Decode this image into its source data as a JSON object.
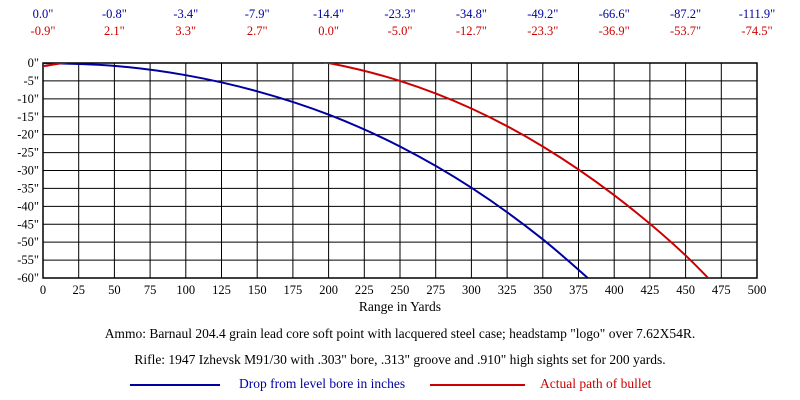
{
  "chart_data": {
    "type": "line",
    "xlabel": "Range in Yards",
    "xlim": [
      0,
      500
    ],
    "ylim": [
      -60,
      0
    ],
    "x_ticks": [
      "0",
      "25",
      "50",
      "75",
      "100",
      "125",
      "150",
      "175",
      "200",
      "225",
      "250",
      "275",
      "300",
      "325",
      "350",
      "375",
      "400",
      "425",
      "450",
      "475",
      "500"
    ],
    "y_ticks": [
      "0\"",
      "-5\"",
      "-10\"",
      "-15\"",
      "-20\"",
      "-25\"",
      "-30\"",
      "-35\"",
      "-40\"",
      "-45\"",
      "-50\"",
      "-55\"",
      "-60\""
    ],
    "grid": true,
    "top_labels_drop": [
      "0.0\"",
      "-0.8\"",
      "-3.4\"",
      "-7.9\"",
      "-14.4\"",
      "-23.3\"",
      "-34.8\"",
      "-49.2\"",
      "-66.6\"",
      "-87.2\"",
      "-111.9\""
    ],
    "top_labels_path": [
      "-0.9\"",
      "2.1\"",
      "3.3\"",
      "2.7\"",
      "0.0\"",
      "-5.0\"",
      "-12.7\"",
      "-23.3\"",
      "-36.9\"",
      "-53.7\"",
      "-74.5\""
    ],
    "top_label_x": [
      0,
      50,
      100,
      150,
      200,
      250,
      300,
      350,
      400,
      450,
      500
    ],
    "series": [
      {
        "name": "Drop from level bore in inches",
        "color": "#0000a0",
        "x": [
          0,
          50,
          100,
          150,
          200,
          250,
          300,
          350,
          400
        ],
        "y": [
          0.0,
          -0.8,
          -3.4,
          -7.9,
          -14.4,
          -23.3,
          -34.8,
          -49.2,
          -66.6
        ]
      },
      {
        "name": "Actual path of bullet",
        "color": "#cc0000",
        "x": [
          0,
          50,
          100,
          150,
          200,
          250,
          300,
          350,
          400,
          450,
          500
        ],
        "y": [
          -0.9,
          2.1,
          3.3,
          2.7,
          0.0,
          -5.0,
          -12.7,
          -23.3,
          -36.9,
          -53.7,
          -74.5
        ]
      }
    ]
  },
  "notes": {
    "ammo": "Ammo:  Barnaul 204.4 grain lead core soft point with lacquered steel case; headstamp \"logo\" over 7.62X54R.",
    "rifle": "Rifle:  1947 Izhevsk M91/30 with .303\" bore, .313\" groove and .910\" high sights set for 200 yards."
  },
  "legend": {
    "drop_label": "Drop from level bore in inches",
    "path_label": "Actual path of bullet"
  }
}
